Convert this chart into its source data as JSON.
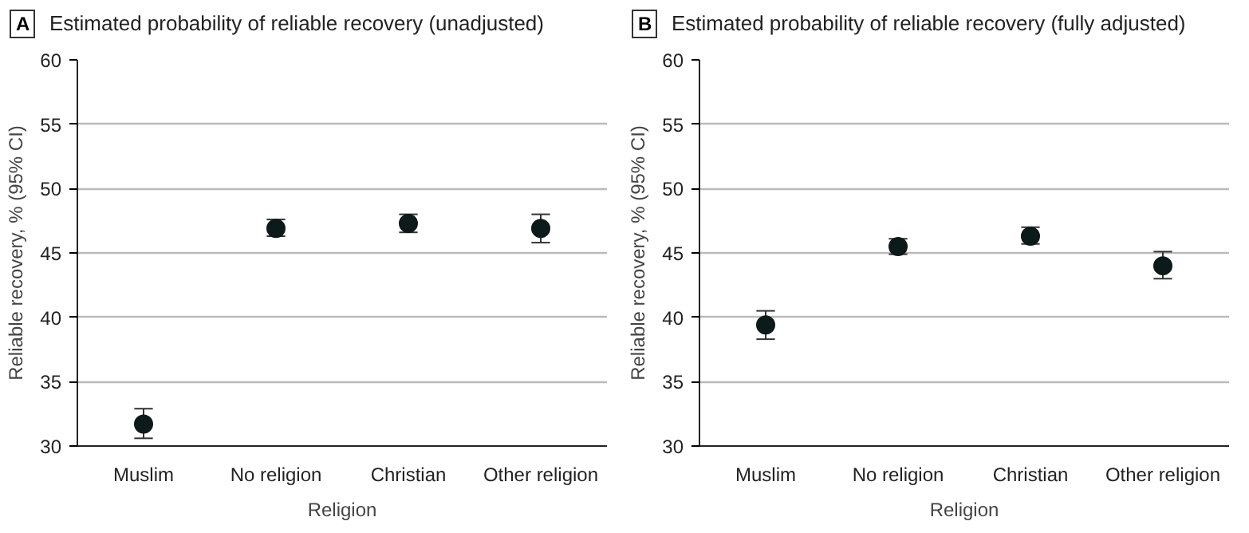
{
  "chart_data": [
    {
      "type": "scatter",
      "title": "Estimated probability of reliable recovery (unadjusted)",
      "annotations": [
        "A"
      ],
      "xlabel": "Religion",
      "ylabel": "Reliable recovery, % (95% CI)",
      "categories": [
        "Muslim",
        "No religion",
        "Christian",
        "Other religion"
      ],
      "series": [
        {
          "color": "#0d1a1a",
          "values": [
            31.7,
            46.9,
            47.3,
            46.9
          ],
          "errors": [
            [
              30.6,
              32.9
            ],
            [
              46.3,
              47.6
            ],
            [
              46.6,
              48.0
            ],
            [
              45.8,
              48.0
            ]
          ]
        }
      ],
      "ylim": [
        30,
        60
      ],
      "yticks": [
        30,
        35,
        40,
        45,
        50,
        55,
        60
      ],
      "grid": "y",
      "marker": "circle"
    },
    {
      "type": "scatter",
      "title": "Estimated probability of reliable recovery (fully adjusted)",
      "annotations": [
        "B"
      ],
      "xlabel": "Religion",
      "ylabel": "Reliable recovery, % (95% CI)",
      "categories": [
        "Muslim",
        "No religion",
        "Christian",
        "Other religion"
      ],
      "series": [
        {
          "color": "#0d1a1a",
          "values": [
            39.4,
            45.5,
            46.3,
            44.0
          ],
          "errors": [
            [
              38.3,
              40.5
            ],
            [
              44.9,
              46.1
            ],
            [
              45.7,
              47.0
            ],
            [
              43.0,
              45.1
            ]
          ]
        }
      ],
      "ylim": [
        30,
        60
      ],
      "yticks": [
        30,
        35,
        40,
        45,
        50,
        55,
        60
      ],
      "grid": "y",
      "marker": "circle"
    }
  ]
}
